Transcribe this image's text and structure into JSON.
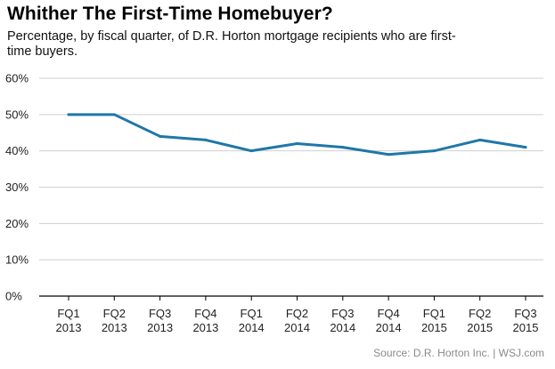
{
  "chart_data": {
    "type": "line",
    "title": "Whither The First-Time Homebuyer?",
    "subtitle": "Percentage, by fiscal quarter, of D.R. Horton mortgage recipients who are first-time buyers.",
    "categories": [
      [
        "FQ1",
        "2013"
      ],
      [
        "FQ2",
        "2013"
      ],
      [
        "FQ3",
        "2013"
      ],
      [
        "FQ4",
        "2013"
      ],
      [
        "FQ1",
        "2014"
      ],
      [
        "FQ2",
        "2014"
      ],
      [
        "FQ3",
        "2014"
      ],
      [
        "FQ4",
        "2014"
      ],
      [
        "FQ1",
        "2015"
      ],
      [
        "FQ2",
        "2015"
      ],
      [
        "FQ3",
        "2015"
      ]
    ],
    "series": [
      {
        "values": [
          50,
          50,
          44,
          43,
          40,
          42,
          41,
          39,
          40,
          43,
          41
        ]
      }
    ],
    "yticks": [
      "0%",
      "10%",
      "20%",
      "30%",
      "40%",
      "50%",
      "60%"
    ],
    "ylim": [
      0,
      60
    ],
    "y_unit": "%",
    "grid": true,
    "line_color": "#1f77a8",
    "grid_color": "#cfcfcf",
    "source": "Source: D.R. Horton Inc.  |  WSJ.com"
  }
}
